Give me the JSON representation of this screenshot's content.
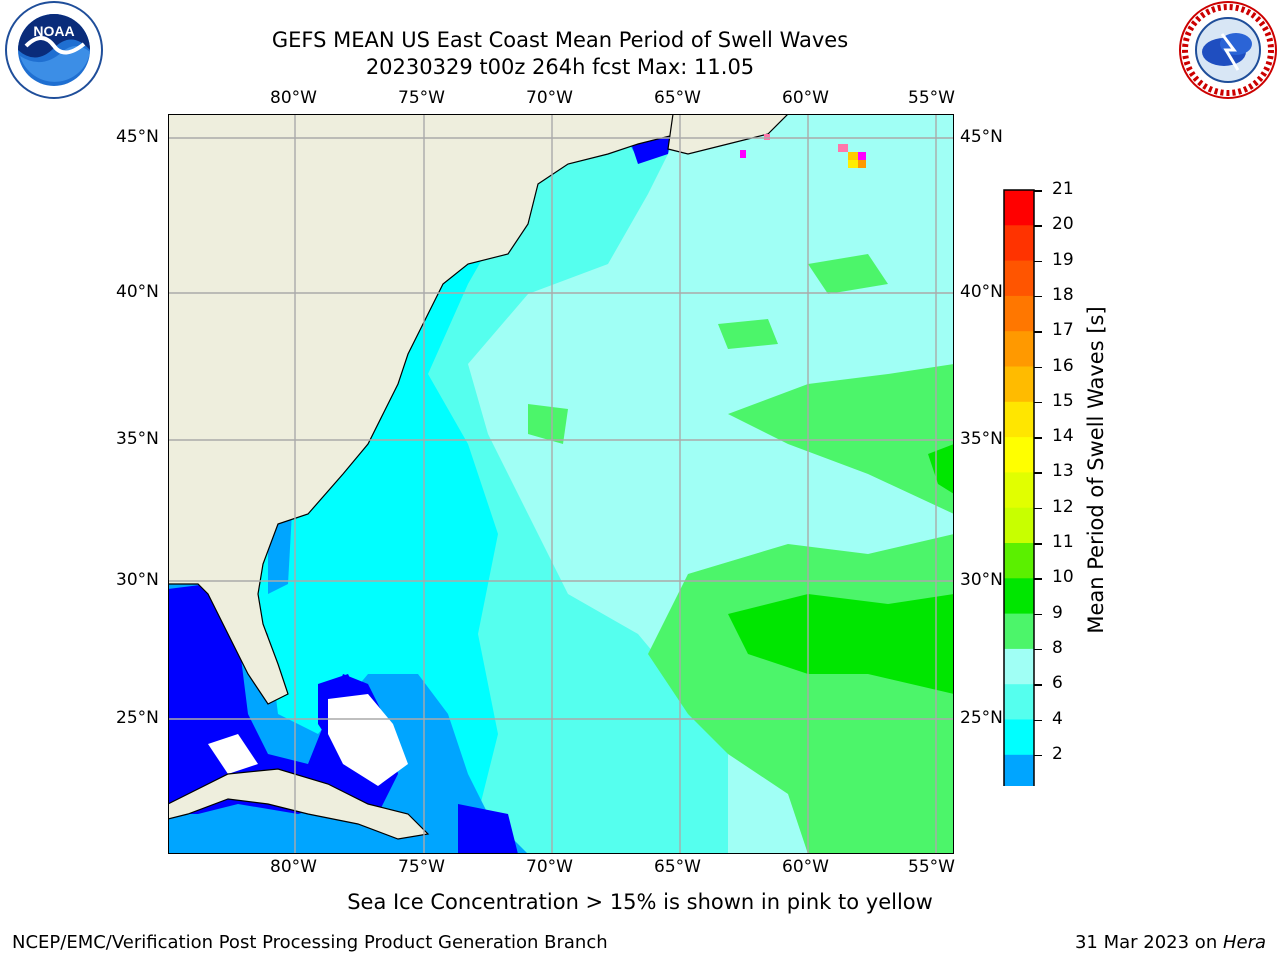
{
  "title": {
    "line1": "GEFS MEAN US East Coast Mean Period of Swell Waves",
    "line2": "20230329 t00z 264h fcst   Max: 11.05"
  },
  "logos": {
    "left": "NOAA",
    "right": "NATIONAL WEATHER SERVICE"
  },
  "map": {
    "lon_ticks": [
      "80°W",
      "75°W",
      "70°W",
      "65°W",
      "60°W",
      "55°W"
    ],
    "lat_ticks": [
      "45°N",
      "40°N",
      "35°N",
      "30°N",
      "25°N"
    ],
    "gridlines": true
  },
  "colorbar": {
    "label": "Mean Period of Swell Waves [s]",
    "ticks": [
      "21",
      "20",
      "19",
      "18",
      "17",
      "16",
      "15",
      "14",
      "13",
      "12",
      "11",
      "10",
      "9",
      "8",
      "6",
      "4",
      "2"
    ],
    "colors": [
      "#ff0000",
      "#ff3300",
      "#ff5500",
      "#ff7700",
      "#ff9900",
      "#ffbb00",
      "#ffe600",
      "#ffff00",
      "#e1ff00",
      "#c8ff00",
      "#5bf000",
      "#00e600",
      "#4cf56a",
      "#a0fff5",
      "#55ffee",
      "#00ffff",
      "#00a5ff"
    ],
    "under_color": "#0000ff"
  },
  "note": "Sea Ice Concentration > 15% is shown in pink to yellow",
  "footer": {
    "left": "NCEP/EMC/Verification Post Processing Product Generation Branch",
    "date": "31 Mar 2023 on ",
    "host": "Hera"
  },
  "colors": {
    "land": "#eeeedd",
    "water_cyan": "#00ffff",
    "water_lightcyan": "#55ffee",
    "water_pale": "#a0fff5",
    "water_green": "#4cf56a",
    "water_brightgreen": "#00e600",
    "water_blue": "#00a5ff",
    "water_deepblue": "#0000ff",
    "grid": "#aaaaaa"
  }
}
